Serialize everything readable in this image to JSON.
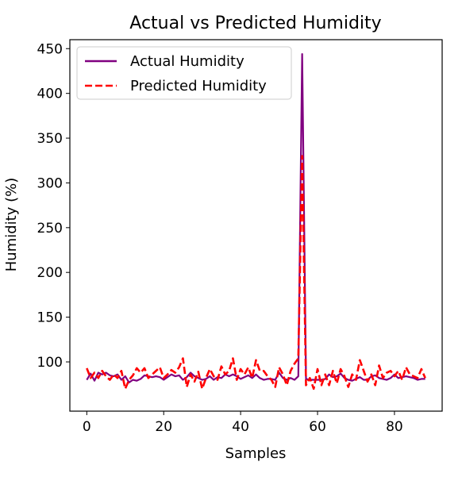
{
  "chart_data": {
    "type": "line",
    "title": "Actual vs Predicted Humidity",
    "xlabel": "Samples",
    "ylabel": "Humidity (%)",
    "xlim": [
      -4.4,
      92.4
    ],
    "ylim": [
      45,
      460
    ],
    "xticks": [
      0,
      20,
      40,
      60,
      80
    ],
    "yticks": [
      100,
      150,
      200,
      250,
      300,
      350,
      400,
      450
    ],
    "grid": false,
    "legend_position": "top-left",
    "series": [
      {
        "name": "Actual Humidity",
        "color": "#800080",
        "linestyle": "solid",
        "values": [
          80,
          87,
          79,
          88,
          86,
          88,
          85,
          84,
          86,
          80,
          84,
          77,
          80,
          79,
          81,
          85,
          84,
          83,
          84,
          83,
          80,
          83,
          86,
          84,
          85,
          80,
          83,
          88,
          84,
          82,
          80,
          81,
          84,
          80,
          83,
          82,
          86,
          84,
          86,
          84,
          81,
          83,
          85,
          82,
          86,
          82,
          80,
          81,
          81,
          80,
          88,
          82,
          80,
          82,
          80,
          84,
          444,
          81,
          80,
          80,
          80,
          80,
          81,
          86,
          83,
          84,
          87,
          82,
          80,
          79,
          81,
          83,
          80,
          80,
          84,
          85,
          82,
          81,
          80,
          82,
          86,
          82,
          83,
          84,
          83,
          82,
          80,
          81,
          81
        ]
      },
      {
        "name": "Predicted Humidity",
        "color": "#ff0000",
        "linestyle": "dashed",
        "values": [
          93,
          82,
          88,
          82,
          90,
          84,
          80,
          86,
          82,
          90,
          70,
          80,
          85,
          93,
          88,
          93,
          82,
          86,
          90,
          94,
          82,
          86,
          91,
          88,
          94,
          104,
          72,
          86,
          78,
          89,
          70,
          82,
          92,
          84,
          80,
          95,
          86,
          90,
          104,
          80,
          92,
          86,
          94,
          82,
          102,
          90,
          90,
          84,
          80,
          72,
          94,
          86,
          74,
          90,
          98,
          104,
          330,
          74,
          82,
          70,
          92,
          74,
          86,
          74,
          90,
          76,
          92,
          84,
          72,
          86,
          80,
          102,
          90,
          78,
          86,
          74,
          96,
          82,
          88,
          90,
          84,
          90,
          80,
          94,
          86,
          84,
          82,
          92,
          82
        ]
      }
    ]
  }
}
